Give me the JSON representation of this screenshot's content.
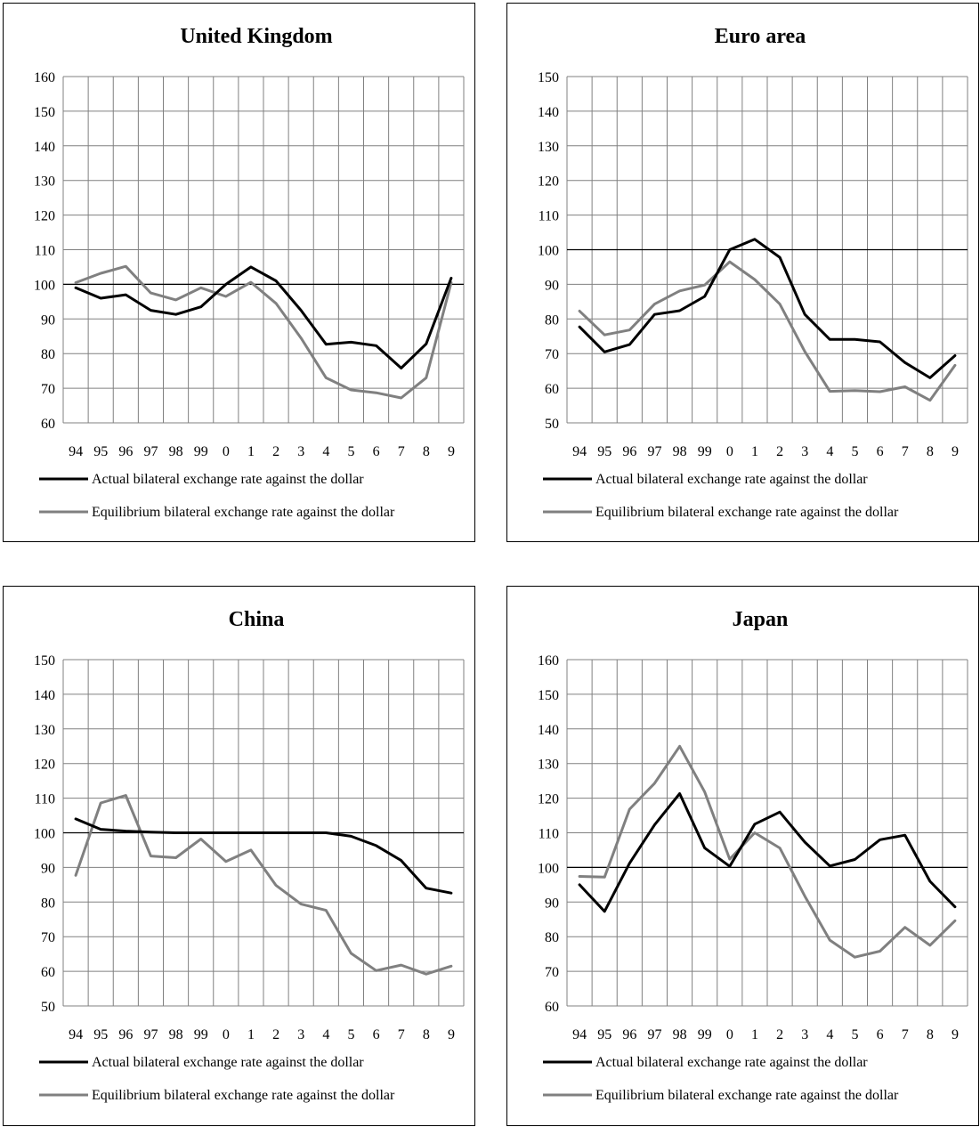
{
  "legend": {
    "actual": "Actual bilateral exchange rate against the dollar",
    "equilibrium": "Equilibrium bilateral exchange rate against the dollar"
  },
  "colors": {
    "actual": "#000000",
    "equilibrium": "#808080",
    "grid": "#808080",
    "reference": "#000000"
  },
  "chart_data": [
    {
      "type": "line",
      "title": "United Kingdom",
      "categories": [
        "94",
        "95",
        "96",
        "97",
        "98",
        "99",
        "0",
        "1",
        "2",
        "3",
        "4",
        "5",
        "6",
        "7",
        "8",
        "9"
      ],
      "ylim": [
        60,
        160
      ],
      "yticks": [
        60,
        70,
        80,
        90,
        100,
        110,
        120,
        130,
        140,
        150,
        160
      ],
      "grid": true,
      "reference_line": 100,
      "legend_position": "bottom",
      "series": [
        {
          "name": "Actual bilateral exchange rate against the dollar",
          "key": "actual",
          "values": [
            99,
            96,
            97,
            92.5,
            91.3,
            93.5,
            100,
            105,
            101,
            92.5,
            82.7,
            83.3,
            82.3,
            75.8,
            82.8,
            101.8
          ]
        },
        {
          "name": "Equilibrium bilateral exchange rate against the dollar",
          "key": "equilibrium",
          "values": [
            100.5,
            103.2,
            105.2,
            97.5,
            95.5,
            99,
            96.5,
            100.6,
            94.5,
            84.5,
            73,
            69.5,
            68.7,
            67.2,
            73,
            100.5
          ]
        }
      ]
    },
    {
      "type": "line",
      "title": "Euro area",
      "categories": [
        "94",
        "95",
        "96",
        "97",
        "98",
        "99",
        "0",
        "1",
        "2",
        "3",
        "4",
        "5",
        "6",
        "7",
        "8",
        "9"
      ],
      "ylim": [
        50,
        150
      ],
      "yticks": [
        50,
        60,
        70,
        80,
        90,
        100,
        110,
        120,
        130,
        140,
        150
      ],
      "grid": true,
      "reference_line": 100,
      "legend_position": "bottom",
      "series": [
        {
          "name": "Actual bilateral exchange rate against the dollar",
          "key": "actual",
          "values": [
            77.7,
            70.5,
            72.6,
            81.3,
            82.4,
            86.5,
            100,
            103,
            97.8,
            81.3,
            74.1,
            74.1,
            73.4,
            67.4,
            63,
            69.4
          ]
        },
        {
          "name": "Equilibrium bilateral exchange rate against the dollar",
          "key": "equilibrium",
          "values": [
            82.3,
            75.4,
            76.8,
            84.3,
            88.1,
            89.8,
            96.5,
            91.4,
            84.3,
            70.6,
            59.1,
            59.3,
            59,
            60.4,
            56.5,
            66.6
          ]
        }
      ]
    },
    {
      "type": "line",
      "title": "China",
      "categories": [
        "94",
        "95",
        "96",
        "97",
        "98",
        "99",
        "0",
        "1",
        "2",
        "3",
        "4",
        "5",
        "6",
        "7",
        "8",
        "9"
      ],
      "ylim": [
        50,
        150
      ],
      "yticks": [
        50,
        60,
        70,
        80,
        90,
        100,
        110,
        120,
        130,
        140,
        150
      ],
      "grid": true,
      "reference_line": 100,
      "legend_position": "bottom",
      "series": [
        {
          "name": "Actual bilateral exchange rate against the dollar",
          "key": "actual",
          "values": [
            104,
            101,
            100.5,
            100.2,
            100,
            100,
            100,
            100,
            100,
            100,
            100,
            99,
            96.3,
            92,
            84,
            82.6
          ]
        },
        {
          "name": "Equilibrium bilateral exchange rate against the dollar",
          "key": "equilibrium",
          "values": [
            87.7,
            108.6,
            110.8,
            93.3,
            92.8,
            98.2,
            91.7,
            95,
            84.8,
            79.4,
            77.6,
            65.2,
            60.2,
            61.8,
            59.2,
            61.5
          ]
        }
      ]
    },
    {
      "type": "line",
      "title": "Japan",
      "categories": [
        "94",
        "95",
        "96",
        "97",
        "98",
        "99",
        "0",
        "1",
        "2",
        "3",
        "4",
        "5",
        "6",
        "7",
        "8",
        "9"
      ],
      "ylim": [
        60,
        160
      ],
      "yticks": [
        60,
        70,
        80,
        90,
        100,
        110,
        120,
        130,
        140,
        150,
        160
      ],
      "grid": true,
      "reference_line": 100,
      "legend_position": "bottom",
      "series": [
        {
          "name": "Actual bilateral exchange rate against the dollar",
          "key": "actual",
          "values": [
            95,
            87.3,
            101.2,
            112.3,
            121.3,
            105.6,
            100.3,
            112.5,
            116,
            107.3,
            100.4,
            102.3,
            108,
            109.3,
            96,
            88.6
          ]
        },
        {
          "name": "Equilibrium bilateral exchange rate against the dollar",
          "key": "equilibrium",
          "values": [
            97.4,
            97.2,
            116.8,
            124.3,
            135,
            121.8,
            102.4,
            110,
            105.6,
            91.7,
            79,
            74.1,
            75.8,
            82.7,
            77.5,
            84.6
          ]
        }
      ]
    }
  ]
}
